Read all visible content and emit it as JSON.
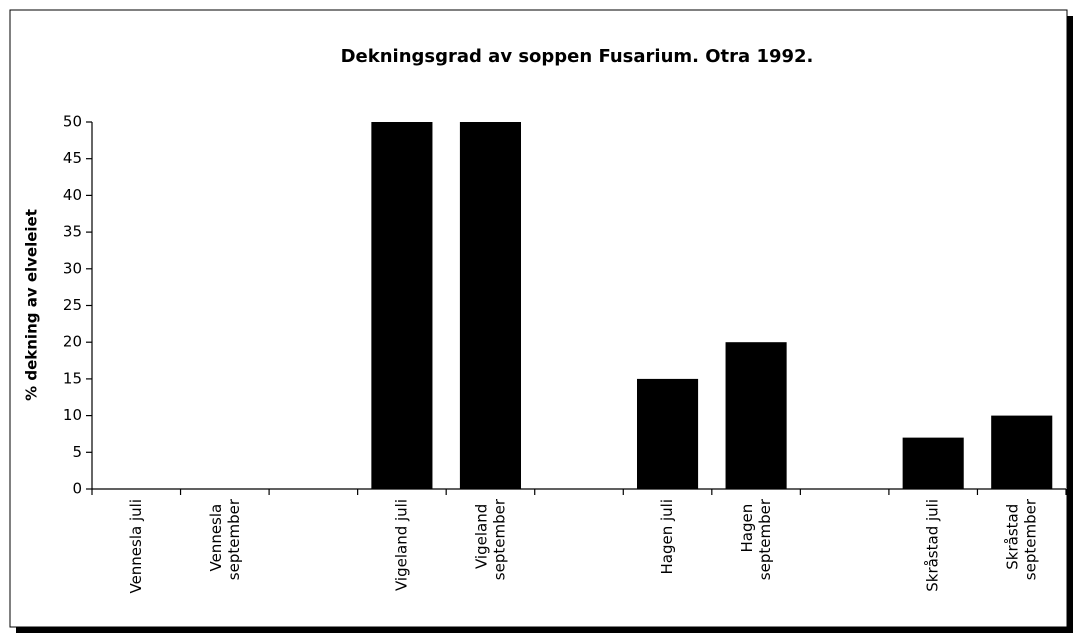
{
  "chart_data": {
    "type": "bar",
    "title": "Dekningsgrad av soppen Fusarium. Otra 1992.",
    "y_label": "% dekning av elveleiet",
    "categories": [
      "Vennesla juli",
      "Vennesla september",
      null,
      "Vigeland juli",
      "Vigeland september",
      null,
      "Hagen juli",
      "Hagen september",
      null,
      "Skråstad juli",
      "Skråstad september"
    ],
    "values": [
      0,
      0,
      null,
      50,
      50,
      null,
      15,
      20,
      null,
      7,
      10
    ],
    "color": "#000000",
    "ylim": [
      0,
      50
    ],
    "yticks": [
      0,
      5,
      10,
      15,
      20,
      25,
      30,
      35,
      40,
      45,
      50
    ],
    "grid": false
  }
}
